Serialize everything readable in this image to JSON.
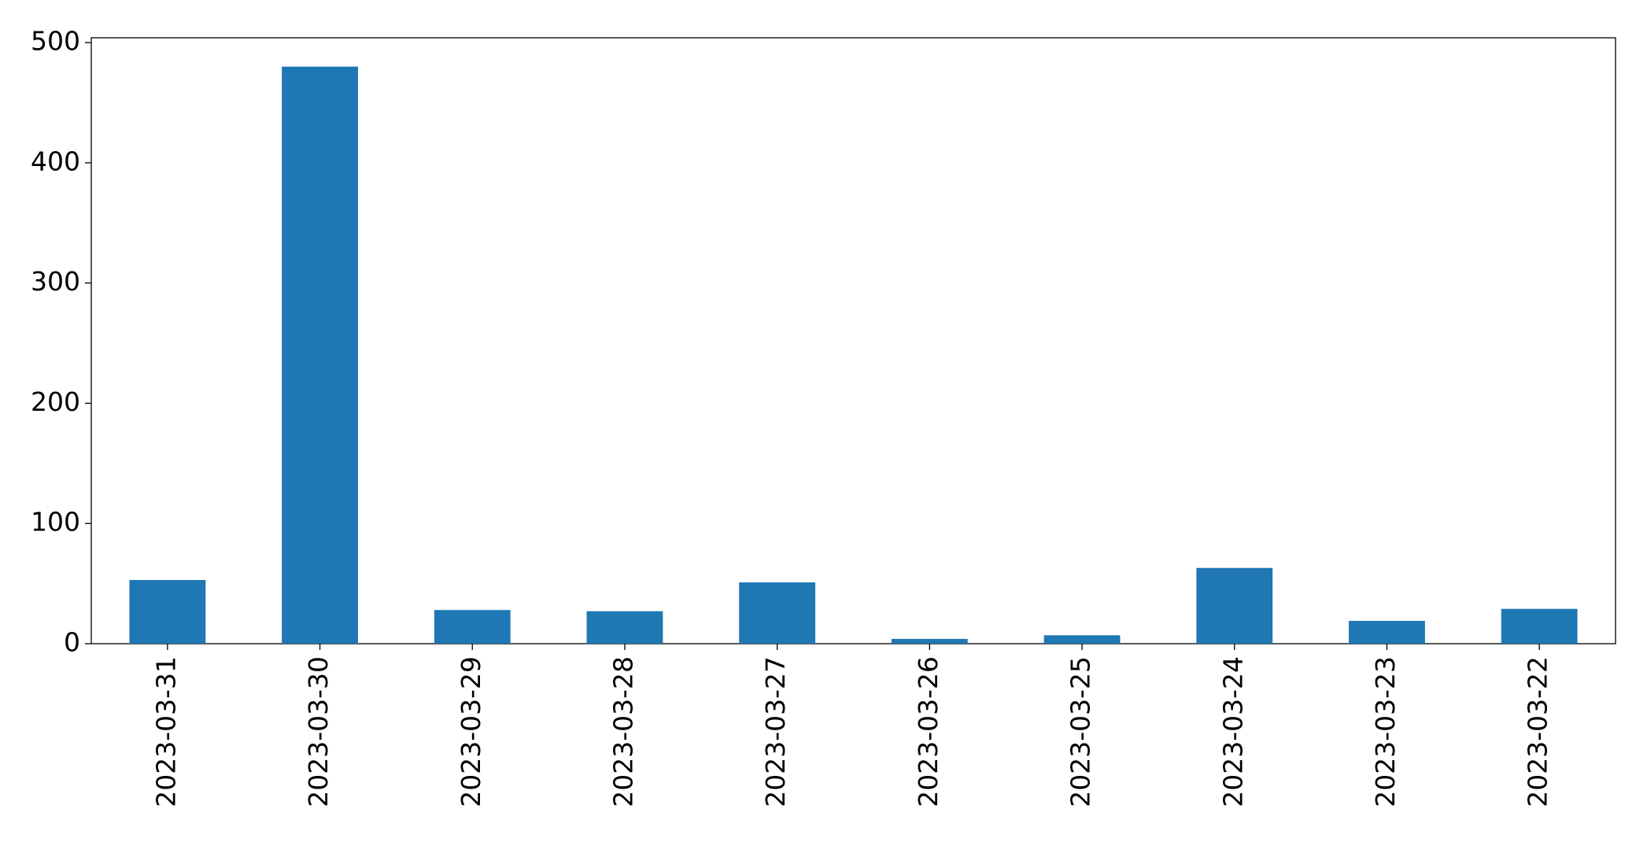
{
  "chart_data": {
    "type": "bar",
    "categories": [
      "2023-03-31",
      "2023-03-30",
      "2023-03-29",
      "2023-03-28",
      "2023-03-27",
      "2023-03-26",
      "2023-03-25",
      "2023-03-24",
      "2023-03-23",
      "2023-03-22"
    ],
    "values": [
      53,
      480,
      28,
      27,
      51,
      4,
      7,
      63,
      19,
      29
    ],
    "color": "#1f77b4",
    "ylim": [
      0,
      504
    ],
    "yticks": [
      0,
      100,
      200,
      300,
      400,
      500
    ],
    "grid": false
  }
}
